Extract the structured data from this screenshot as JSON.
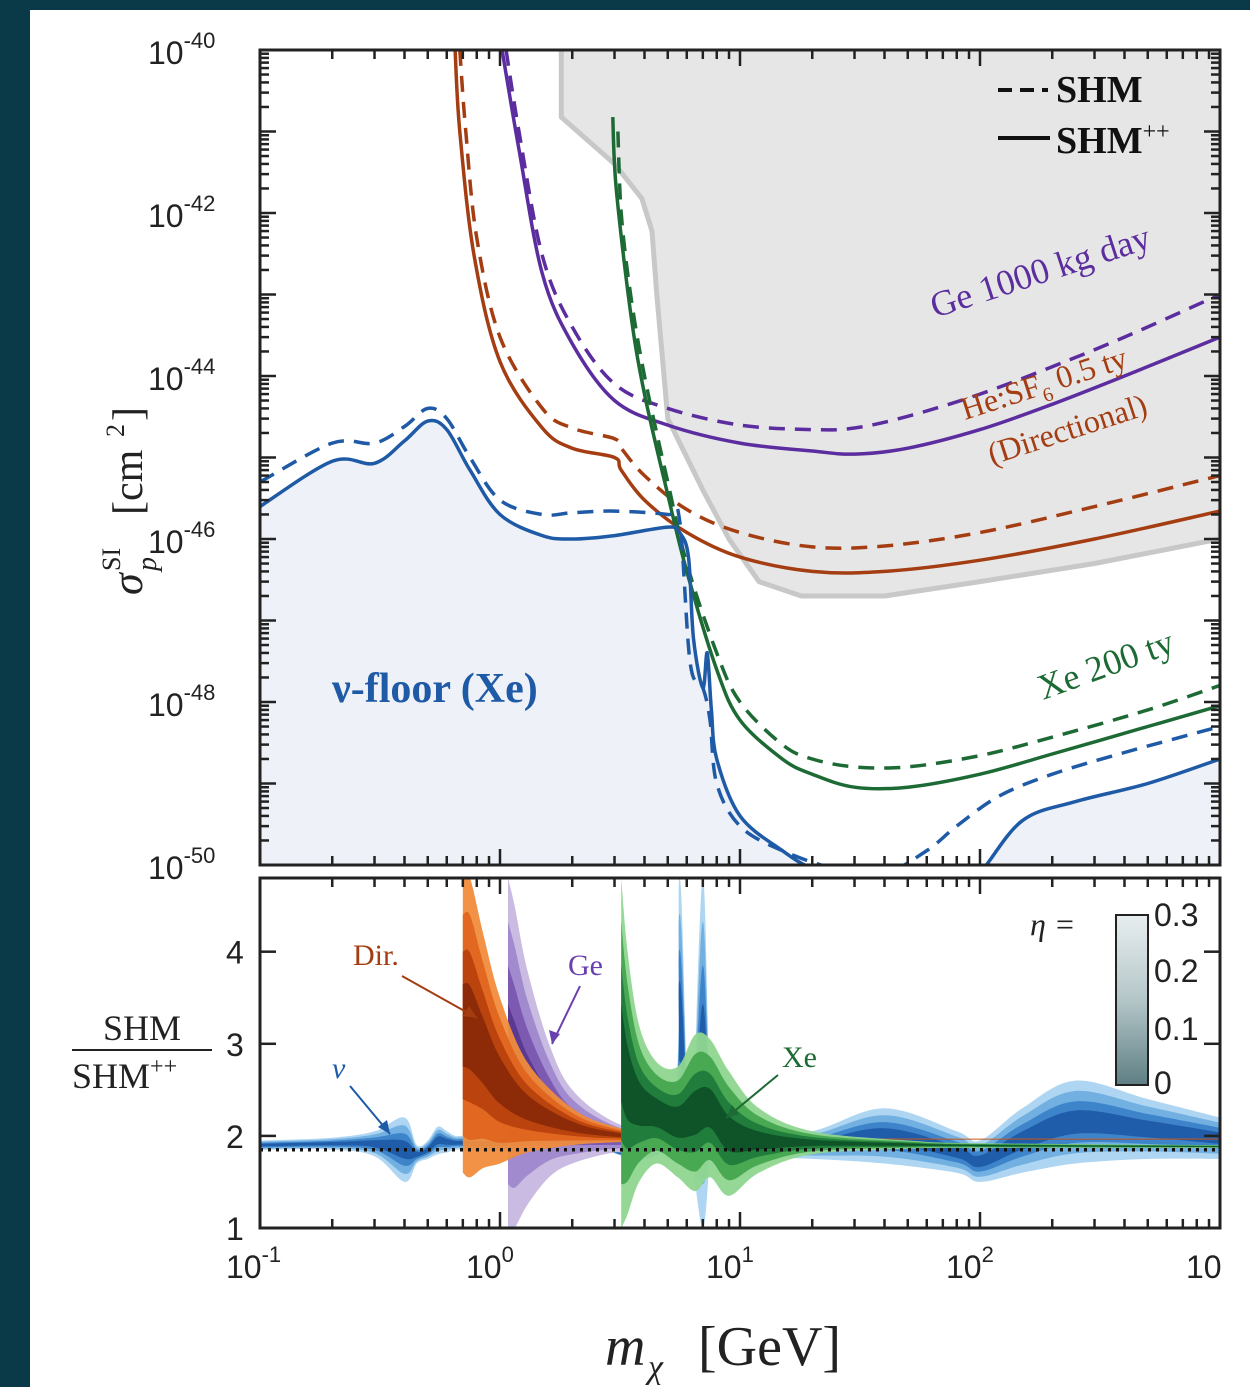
{
  "chart_data": [
    {
      "type": "line",
      "xlabel": "m_χ [GeV]",
      "ylabel": "σ_p^SI [cm²]",
      "xscale": "log",
      "yscale": "log",
      "xlim": [
        0.1,
        1000
      ],
      "ylim": [
        1e-50,
        1e-40
      ],
      "x_tick_labels": [
        "10",
        "10",
        "10",
        "10",
        "10"
      ],
      "x_tick_exponents": [
        "-1",
        "0",
        "1",
        "2",
        ""
      ],
      "y_tick_labels": [
        "10",
        "10",
        "10",
        "10",
        "10",
        "10"
      ],
      "y_tick_exponents": [
        "-40",
        "-42",
        "-44",
        "-46",
        "-48",
        "-50"
      ],
      "legend": {
        "placement": "top-right",
        "entries": [
          {
            "marker": "- -",
            "label": "SHM",
            "style": "dashed"
          },
          {
            "marker": "—",
            "label": "SHM",
            "sup": "++",
            "style": "solid"
          }
        ]
      },
      "annotations": {
        "ge": "Ge 1000 kg day",
        "he_line1_a": "He:SF",
        "he_line1_sub": "6",
        "he_line1_b": " 0.5 ty",
        "he_line2": "(Directional)",
        "xe": "Xe 200 ty",
        "floor": "ν-floor (Xe)"
      },
      "colors": {
        "ge": "#5b2d9e",
        "he": "#a43d12",
        "xe": "#1d6a35",
        "floor": "#1e5aa6",
        "floor_fill": "#eef1f7",
        "excluded": "#e6e6e6",
        "excluded_edge": "#c8c8c8"
      },
      "excluded_region_boundary": [
        [
          1.8,
          1e-40
        ],
        [
          1.8,
          1.5e-41
        ],
        [
          3,
          4e-42
        ],
        [
          3.9,
          1.5e-42
        ],
        [
          4.3,
          6e-43
        ],
        [
          4.5,
          1e-43
        ],
        [
          5,
          3e-45
        ],
        [
          7,
          4e-46
        ],
        [
          9,
          1e-46
        ],
        [
          12,
          3e-47
        ],
        [
          18,
          2e-47
        ],
        [
          40,
          2e-47
        ],
        [
          100,
          3e-47
        ],
        [
          300,
          5e-47
        ],
        [
          1000,
          1e-46
        ]
      ],
      "series": [
        {
          "name": "Ge 1000 kg day",
          "style": "dashed",
          "color_key": "ge",
          "points": [
            [
              1.06,
              1e-40
            ],
            [
              1.2,
              1e-41
            ],
            [
              1.5,
              3e-43
            ],
            [
              2,
              4e-44
            ],
            [
              3,
              8e-45
            ],
            [
              5,
              4e-45
            ],
            [
              10,
              2.5e-45
            ],
            [
              20,
              2.2e-45
            ],
            [
              30,
              2.3e-45
            ],
            [
              50,
              3.2e-45
            ],
            [
              100,
              6e-45
            ],
            [
              200,
              1.3e-44
            ],
            [
              400,
              3e-44
            ],
            [
              1000,
              1e-43
            ]
          ]
        },
        {
          "name": "Ge 1000 kg day",
          "style": "solid",
          "color_key": "ge",
          "points": [
            [
              1.02,
              1e-40
            ],
            [
              1.2,
              6e-42
            ],
            [
              1.5,
              1.8e-43
            ],
            [
              2,
              2.5e-44
            ],
            [
              3,
              5e-45
            ],
            [
              5,
              2.5e-45
            ],
            [
              10,
              1.5e-45
            ],
            [
              20,
              1.2e-45
            ],
            [
              30,
              1.1e-45
            ],
            [
              50,
              1.3e-45
            ],
            [
              100,
              2.2e-45
            ],
            [
              200,
              4.5e-45
            ],
            [
              400,
              1e-44
            ],
            [
              1000,
              3e-44
            ]
          ]
        },
        {
          "name": "He:SF6 0.5 ty (Directional)",
          "style": "dashed",
          "color_key": "he",
          "points": [
            [
              0.68,
              1e-40
            ],
            [
              0.72,
              1e-41
            ],
            [
              0.8,
              5e-43
            ],
            [
              1,
              3e-44
            ],
            [
              1.5,
              4e-45
            ],
            [
              2,
              2.3e-45
            ],
            [
              3,
              1.7e-45
            ],
            [
              3.2,
              1.3e-45
            ],
            [
              4,
              6e-46
            ],
            [
              6,
              2.3e-46
            ],
            [
              10,
              1.2e-46
            ],
            [
              20,
              8e-47
            ],
            [
              40,
              8.2e-47
            ],
            [
              100,
              1.2e-46
            ],
            [
              300,
              2.5e-46
            ],
            [
              1000,
              6e-46
            ]
          ]
        },
        {
          "name": "He:SF6 0.5 ty (Directional)",
          "style": "solid",
          "color_key": "he",
          "points": [
            [
              0.65,
              1e-40
            ],
            [
              0.68,
              1e-41
            ],
            [
              0.78,
              3e-43
            ],
            [
              1,
              1.5e-44
            ],
            [
              1.5,
              2.3e-45
            ],
            [
              2,
              1.3e-45
            ],
            [
              3,
              1e-45
            ],
            [
              3.2,
              7e-46
            ],
            [
              4,
              3e-46
            ],
            [
              6,
              1.2e-46
            ],
            [
              10,
              6e-47
            ],
            [
              20,
              4e-47
            ],
            [
              40,
              4e-47
            ],
            [
              100,
              5.5e-47
            ],
            [
              300,
              1e-46
            ],
            [
              1000,
              2.2e-46
            ]
          ]
        },
        {
          "name": "Xe 200 ty",
          "style": "dashed",
          "color_key": "xe",
          "points": [
            [
              3.1,
              1e-41
            ],
            [
              3.2,
              1e-42
            ],
            [
              3.5,
              1e-43
            ],
            [
              4,
              1e-44
            ],
            [
              5,
              5e-46
            ],
            [
              6,
              5e-47
            ],
            [
              8,
              4e-48
            ],
            [
              10,
              1e-48
            ],
            [
              15,
              3e-49
            ],
            [
              20,
              2e-49
            ],
            [
              30,
              1.6e-49
            ],
            [
              50,
              1.6e-49
            ],
            [
              100,
              2.2e-49
            ],
            [
              200,
              3.7e-49
            ],
            [
              500,
              8e-49
            ],
            [
              1000,
              1.6e-48
            ]
          ]
        },
        {
          "name": "Xe 200 ty",
          "style": "solid",
          "color_key": "xe",
          "points": [
            [
              2.95,
              1.5e-41
            ],
            [
              3.05,
              2e-42
            ],
            [
              3.5,
              6e-44
            ],
            [
              4,
              6e-45
            ],
            [
              5,
              3.5e-46
            ],
            [
              6,
              4e-47
            ],
            [
              8,
              2.5e-48
            ],
            [
              10,
              6e-49
            ],
            [
              15,
              2e-49
            ],
            [
              20,
              1.3e-49
            ],
            [
              30,
              9e-50
            ],
            [
              50,
              9e-50
            ],
            [
              100,
              1.3e-49
            ],
            [
              200,
              2.3e-49
            ],
            [
              500,
              5e-49
            ],
            [
              1000,
              9e-49
            ]
          ]
        },
        {
          "name": "ν-floor (Xe)",
          "style": "dashed",
          "color_key": "floor",
          "points": [
            [
              0.1,
              5e-46
            ],
            [
              0.2,
              1.5e-45
            ],
            [
              0.3,
              1.5e-45
            ],
            [
              0.4,
              2.4e-45
            ],
            [
              0.5,
              4e-45
            ],
            [
              0.6,
              3e-45
            ],
            [
              0.75,
              1e-45
            ],
            [
              1,
              3e-46
            ],
            [
              1.5,
              2e-46
            ],
            [
              2,
              2.1e-46
            ],
            [
              3,
              2.2e-46
            ],
            [
              5,
              2e-46
            ],
            [
              5.6,
              1.7e-46
            ],
            [
              6.2,
              3e-48
            ],
            [
              7,
              1.5e-48
            ],
            [
              7.5,
              6e-49
            ],
            [
              8,
              1e-49
            ],
            [
              10,
              3e-50
            ],
            [
              15,
              1.5e-50
            ],
            [
              25,
              9e-51
            ],
            [
              40,
              8e-51
            ],
            [
              60,
              1.5e-50
            ],
            [
              80,
              3e-50
            ],
            [
              120,
              7e-50
            ],
            [
              200,
              1.3e-49
            ],
            [
              400,
              2.4e-49
            ],
            [
              1000,
              5e-49
            ]
          ]
        },
        {
          "name": "ν-floor (Xe)",
          "style": "solid",
          "color_key": "floor",
          "points": [
            [
              0.1,
              2.5e-46
            ],
            [
              0.2,
              9e-46
            ],
            [
              0.3,
              8.5e-46
            ],
            [
              0.4,
              1.6e-45
            ],
            [
              0.5,
              2.8e-45
            ],
            [
              0.6,
              2.2e-45
            ],
            [
              0.75,
              7e-46
            ],
            [
              1,
              2e-46
            ],
            [
              1.5,
              1.1e-46
            ],
            [
              2,
              1e-46
            ],
            [
              3,
              1.1e-46
            ],
            [
              5,
              1.4e-46
            ],
            [
              5.6,
              1.2e-46
            ],
            [
              6.1,
              6e-47
            ],
            [
              6.4,
              6e-48
            ],
            [
              7,
              1.5e-48
            ],
            [
              7.3,
              4e-48
            ],
            [
              7.6,
              8e-49
            ],
            [
              8,
              2e-49
            ],
            [
              10,
              4e-50
            ],
            [
              15,
              1.5e-50
            ],
            [
              20,
              9e-51
            ],
            [
              30,
              6e-51
            ],
            [
              50,
              5e-51
            ],
            [
              80,
              5e-51
            ],
            [
              100,
              8e-51
            ],
            [
              150,
              3.5e-50
            ],
            [
              250,
              6e-50
            ],
            [
              500,
              1e-49
            ],
            [
              1000,
              2e-49
            ]
          ]
        }
      ]
    },
    {
      "type": "area",
      "xlabel": "m_χ [GeV]",
      "ylabel_num": "SHM",
      "ylabel_den": "SHM",
      "ylabel_den_sup": "++",
      "xscale": "log",
      "xlim": [
        0.1,
        1000
      ],
      "ylim": [
        1,
        4.8
      ],
      "y_ticks": [
        "1",
        "2",
        "3",
        "4"
      ],
      "reference_line": {
        "y": 1.85,
        "style": "dotted"
      },
      "annotations": {
        "dir": "Dir.",
        "ge": "Ge",
        "xe": "Xe",
        "nu": "ν"
      },
      "colorbar": {
        "label": "η =",
        "ticks": [
          "0.3",
          "0.2",
          "0.1",
          "0"
        ]
      },
      "band_colors": {
        "dir": [
          "#f08c3c",
          "#e0651f",
          "#b7410e",
          "#8a2a08"
        ],
        "ge": [
          "#c7b7e0",
          "#9f87cc",
          "#7a57b0",
          "#5a3790"
        ],
        "xe": [
          "#8fd68f",
          "#45a64f",
          "#1f7a3a",
          "#0e5227"
        ],
        "nu": [
          "#aad3f0",
          "#6faee0",
          "#3a82c8",
          "#1e5aa6"
        ]
      },
      "series": [
        {
          "name": "Dir.",
          "band_key": "dir",
          "x": [
            0.7,
            0.75,
            0.85,
            1,
            1.3,
            2,
            3,
            5,
            10,
            30,
            100,
            1000
          ],
          "upper": [
            4.8,
            4.8,
            4.2,
            3.5,
            2.8,
            2.3,
            2.1,
            2.0,
            1.98,
            1.97,
            1.97,
            1.97
          ],
          "lower": [
            1.6,
            1.55,
            1.65,
            1.7,
            1.82,
            1.9,
            1.93,
            1.95,
            1.96,
            1.96,
            1.96,
            1.96
          ]
        },
        {
          "name": "Ge",
          "band_key": "ge",
          "x": [
            1.08,
            1.15,
            1.3,
            1.6,
            2,
            3,
            5,
            10,
            30,
            100,
            1000
          ],
          "upper": [
            4.8,
            4.5,
            3.8,
            3.0,
            2.5,
            2.15,
            2.0,
            1.95,
            1.92,
            1.9,
            1.9
          ],
          "lower": [
            1.0,
            1.0,
            1.25,
            1.55,
            1.7,
            1.82,
            1.86,
            1.88,
            1.88,
            1.88,
            1.88
          ]
        },
        {
          "name": "Xe",
          "band_key": "xe",
          "x": [
            3.2,
            3.4,
            3.8,
            4.5,
            5.5,
            6.5,
            7.5,
            9,
            12,
            20,
            50,
            100,
            1000
          ],
          "upper": [
            4.8,
            4.0,
            3.2,
            2.8,
            2.75,
            3.1,
            3.05,
            2.7,
            2.3,
            2.05,
            1.95,
            1.92,
            1.9
          ],
          "lower": [
            1.0,
            1.15,
            1.5,
            1.7,
            1.55,
            1.4,
            1.55,
            1.35,
            1.6,
            1.8,
            1.86,
            1.87,
            1.87
          ]
        },
        {
          "name": "ν",
          "band_key": "nu",
          "x": [
            0.1,
            0.2,
            0.3,
            0.4,
            0.45,
            0.5,
            0.55,
            0.6,
            0.65,
            0.7,
            0.8,
            1,
            2,
            5,
            5.6,
            6.2,
            7,
            7.6,
            8.5,
            10,
            20,
            40,
            80,
            100,
            150,
            250,
            500,
            1000
          ],
          "upper": [
            1.95,
            1.98,
            2.05,
            2.2,
            1.9,
            1.95,
            2.1,
            2.05,
            2.0,
            2.0,
            1.98,
            1.98,
            1.96,
            1.95,
            4.8,
            1.9,
            4.8,
            1.9,
            1.95,
            1.96,
            2.05,
            2.3,
            2.05,
            1.95,
            2.3,
            2.6,
            2.4,
            2.2
          ],
          "lower": [
            1.85,
            1.85,
            1.78,
            1.5,
            1.7,
            1.75,
            1.8,
            1.82,
            1.85,
            1.85,
            1.84,
            1.84,
            1.83,
            1.82,
            1.7,
            1.82,
            1.0,
            1.82,
            1.8,
            1.78,
            1.75,
            1.7,
            1.6,
            1.5,
            1.6,
            1.7,
            1.75,
            1.75
          ]
        }
      ]
    }
  ]
}
